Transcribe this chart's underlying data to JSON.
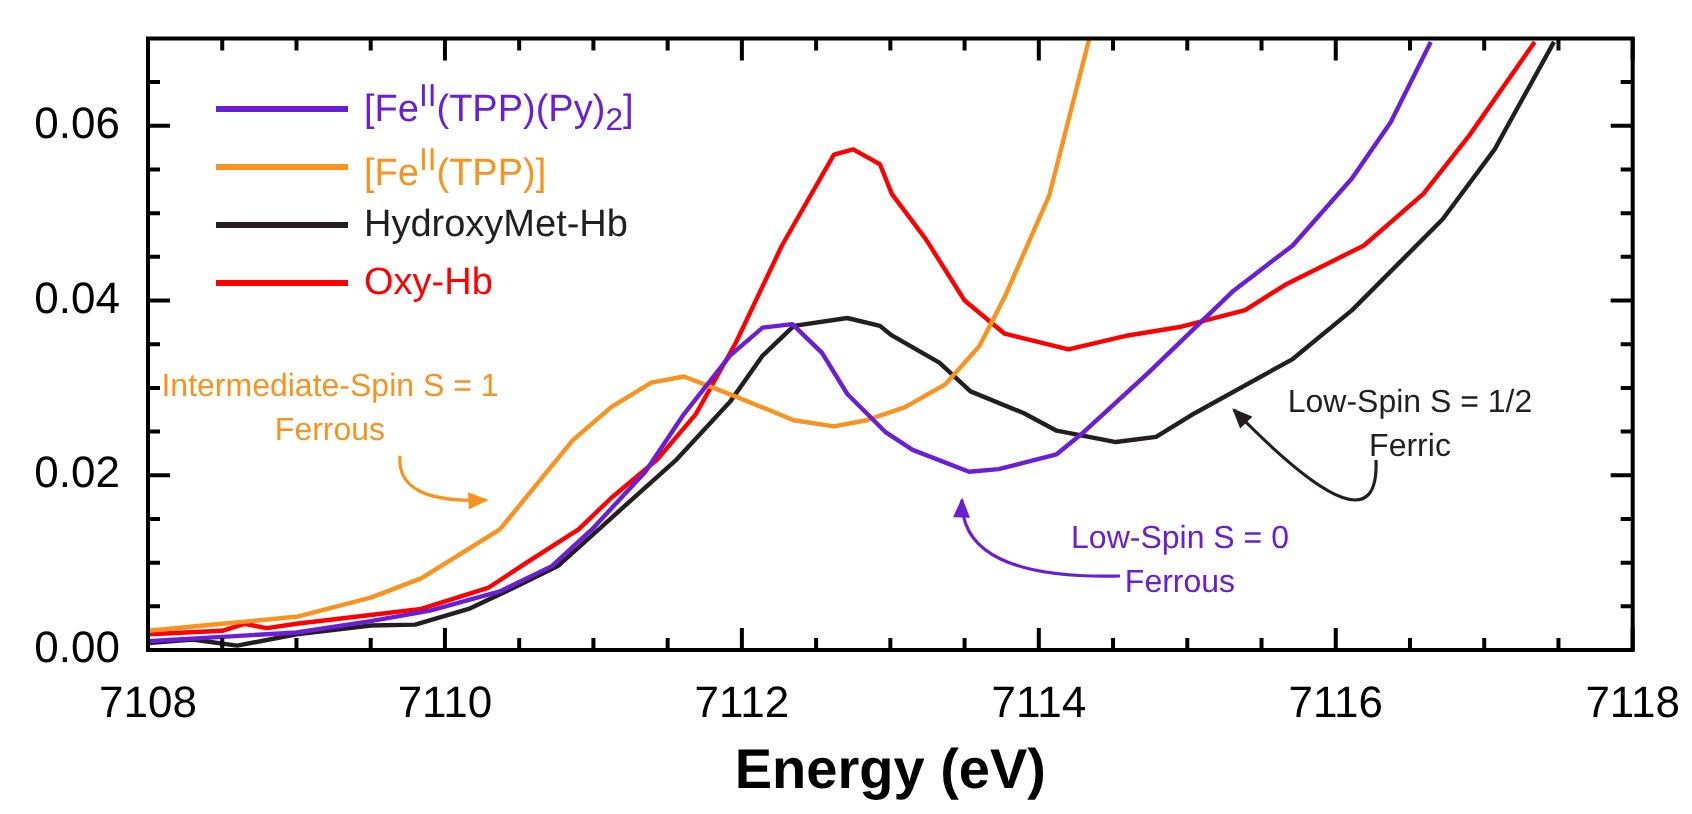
{
  "chart_data": {
    "type": "line",
    "xlabel": "Energy (eV)",
    "xlim": [
      7108,
      7118
    ],
    "xticks": [
      7108,
      {
        "value": 7108.5,
        "label": null
      },
      {
        "value": 7109,
        "label": null
      },
      {
        "value": 7109.5,
        "label": null
      },
      7110,
      {
        "value": 7110.5,
        "label": null
      },
      {
        "value": 7111,
        "label": null
      },
      {
        "value": 7111.5,
        "label": null
      },
      7112,
      {
        "value": 7112.5,
        "label": null
      },
      {
        "value": 7113,
        "label": null
      },
      {
        "value": 7113.5,
        "label": null
      },
      7114,
      {
        "value": 7114.5,
        "label": null
      },
      {
        "value": 7115,
        "label": null
      },
      {
        "value": 7115.5,
        "label": null
      },
      7116,
      {
        "value": 7116.5,
        "label": null
      },
      {
        "value": 7117,
        "label": null
      },
      {
        "value": 7117.5,
        "label": null
      },
      7118
    ],
    "ylim": [
      0,
      0.07
    ],
    "yticks": [
      {
        "value": 0,
        "label": "0.00"
      },
      {
        "value": 0.005,
        "label": null
      },
      {
        "value": 0.01,
        "label": null
      },
      {
        "value": 0.015,
        "label": null
      },
      {
        "value": 0.02,
        "label": "0.02"
      },
      {
        "value": 0.025,
        "label": null
      },
      {
        "value": 0.03,
        "label": null
      },
      {
        "value": 0.035,
        "label": null
      },
      {
        "value": 0.04,
        "label": "0.04"
      },
      {
        "value": 0.045,
        "label": null
      },
      {
        "value": 0.05,
        "label": null
      },
      {
        "value": 0.055,
        "label": null
      },
      {
        "value": 0.06,
        "label": "0.06"
      },
      {
        "value": 0.065,
        "label": null
      }
    ],
    "grid": false,
    "legend": "top left",
    "marker": "none",
    "line_style": "solid",
    "series": [
      {
        "name": "[Fe$^{II}$(TPP)(Py)$_{2}$]",
        "color": "#6a1fd6",
        "x": [
          7108,
          7108.5,
          7109,
          7109.5,
          7109.9,
          7110.37,
          7110.72,
          7110.99,
          7111.35,
          7111.61,
          7111.92,
          7112.14,
          7112.34,
          7112.54,
          7112.71,
          7112.97,
          7113.15,
          7113.53,
          7113.73,
          7114.12,
          7114.3,
          7114.73,
          7115.31,
          7115.71,
          7116.11,
          7116.37,
          7116.64
        ],
        "values": [
          0.001,
          0.0015,
          0.002,
          0.0033,
          0.0045,
          0.0067,
          0.0096,
          0.0138,
          0.0204,
          0.027,
          0.0337,
          0.0369,
          0.0373,
          0.034,
          0.0293,
          0.0249,
          0.0229,
          0.0204,
          0.0207,
          0.0224,
          0.0249,
          0.0316,
          0.0411,
          0.0463,
          0.054,
          0.0604,
          0.0696
        ]
      },
      {
        "name": "[Fe$^{II}$(TPP)]",
        "color": "#f7931e",
        "x": [
          7108,
          7108.5,
          7109,
          7109.5,
          7109.84,
          7110.37,
          7110.86,
          7111.12,
          7111.39,
          7111.61,
          7111.96,
          7112.35,
          7112.62,
          7112.84,
          7113.1,
          7113.37,
          7113.6,
          7113.77,
          7114.07,
          7114.34
        ],
        "values": [
          0.0022,
          0.003,
          0.0038,
          0.006,
          0.0082,
          0.0138,
          0.024,
          0.0278,
          0.0306,
          0.0313,
          0.029,
          0.0263,
          0.0256,
          0.0263,
          0.0278,
          0.0304,
          0.0348,
          0.0404,
          0.052,
          0.07
        ]
      },
      {
        "name": "HydroxyMet-Hb",
        "color": "#231f20",
        "x": [
          7108,
          7108.3,
          7108.6,
          7109,
          7109.5,
          7109.8,
          7110.16,
          7110.46,
          7110.76,
          7111.12,
          7111.56,
          7111.92,
          7112.14,
          7112.35,
          7112.71,
          7112.93,
          7113.01,
          7113.33,
          7113.54,
          7113.9,
          7114.12,
          7114.52,
          7114.79,
          7115.05,
          7115.71,
          7116.11,
          7116.72,
          7117.07,
          7117.47
        ],
        "values": [
          0.0008,
          0.0012,
          0.0005,
          0.0018,
          0.0028,
          0.0029,
          0.0047,
          0.0071,
          0.0096,
          0.0151,
          0.0218,
          0.0284,
          0.0337,
          0.0371,
          0.038,
          0.0371,
          0.036,
          0.0329,
          0.0296,
          0.0271,
          0.0251,
          0.0238,
          0.0244,
          0.0271,
          0.0333,
          0.0389,
          0.0493,
          0.0573,
          0.0696
        ]
      },
      {
        "name": "Oxy-Hb",
        "color": "#ff0000",
        "x": [
          7108,
          7108.5,
          7108.65,
          7108.8,
          7109,
          7109.5,
          7109.84,
          7110.29,
          7110.55,
          7110.9,
          7111.12,
          7111.43,
          7111.69,
          7111.96,
          7112.27,
          7112.62,
          7112.75,
          7112.93,
          7113.01,
          7113.24,
          7113.5,
          7113.77,
          7114.2,
          7114.6,
          7114.96,
          7115.39,
          7115.66,
          7116.19,
          7116.59,
          7116.9,
          7117.34
        ],
        "values": [
          0.0018,
          0.0022,
          0.003,
          0.0025,
          0.003,
          0.004,
          0.0047,
          0.0071,
          0.01,
          0.0138,
          0.0174,
          0.0218,
          0.027,
          0.0352,
          0.0463,
          0.0567,
          0.0573,
          0.0556,
          0.0522,
          0.047,
          0.04,
          0.0362,
          0.0344,
          0.036,
          0.037,
          0.0389,
          0.0418,
          0.0463,
          0.0522,
          0.0589,
          0.0696
        ]
      }
    ],
    "annotations": [
      "Intermediate-Spin S = 1\nFerrous",
      "Low-Spin S = 0\nFerrous",
      "Low-Spin S = 1/2\nFerric"
    ]
  }
}
